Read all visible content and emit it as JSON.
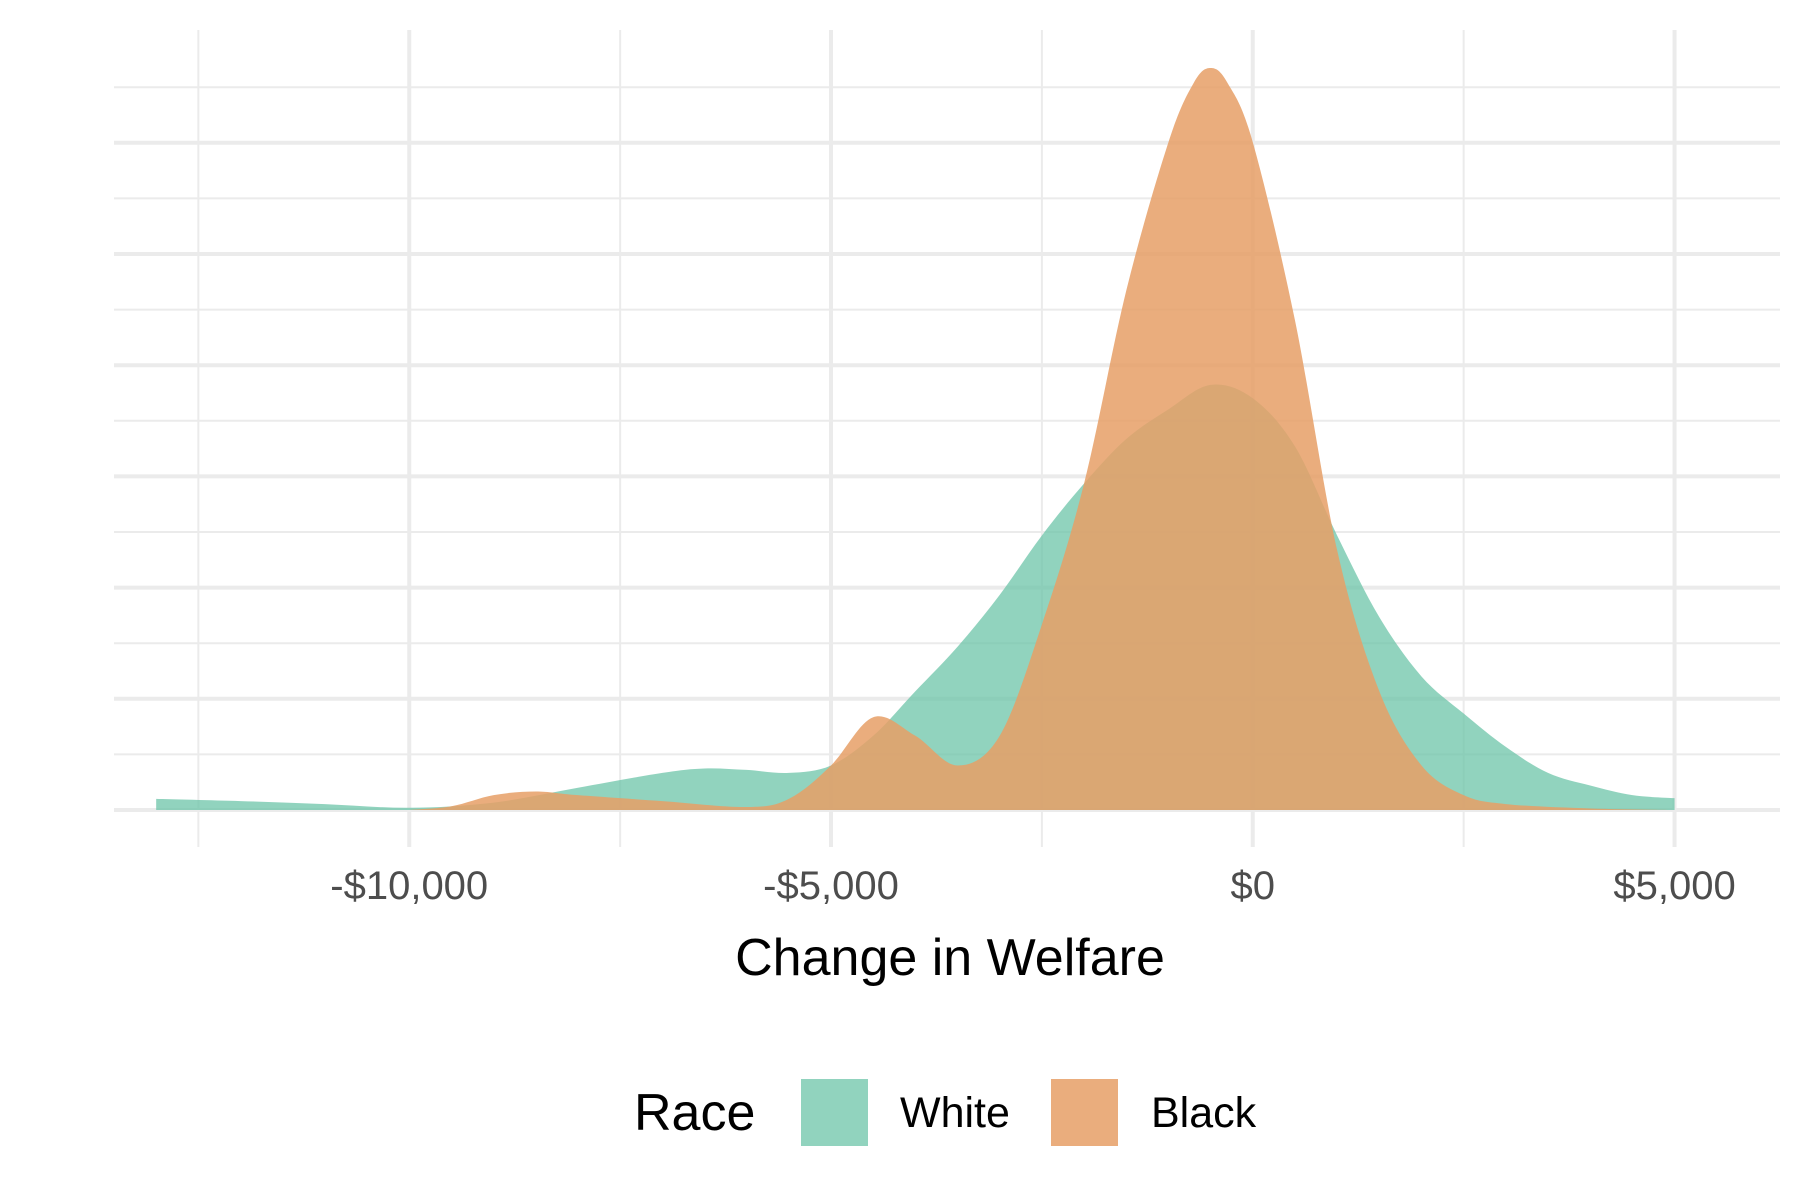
{
  "chart_data": {
    "type": "area",
    "subtype": "density",
    "title": "",
    "xlabel": "Change in Welfare",
    "ylabel": "",
    "xlim": [
      -13500,
      6250
    ],
    "ylim": [
      0,
      1.0
    ],
    "x_ticks": [
      -10000,
      -5000,
      0,
      5000
    ],
    "x_tick_labels": [
      "-$10,000",
      "-$5,000",
      "$0",
      "$5,000"
    ],
    "y_ticks_shown": false,
    "grid": true,
    "legend": {
      "title": "Race",
      "position": "bottom"
    },
    "series": [
      {
        "name": "White",
        "color": "#66C2A5",
        "opacity": 0.72,
        "points": [
          [
            -13000,
            0.015
          ],
          [
            -12000,
            0.012
          ],
          [
            -11000,
            0.008
          ],
          [
            -10000,
            0.003
          ],
          [
            -9000,
            0.01
          ],
          [
            -8000,
            0.03
          ],
          [
            -7000,
            0.05
          ],
          [
            -6500,
            0.056
          ],
          [
            -6000,
            0.054
          ],
          [
            -5500,
            0.05
          ],
          [
            -5000,
            0.06
          ],
          [
            -4500,
            0.1
          ],
          [
            -4000,
            0.16
          ],
          [
            -3500,
            0.22
          ],
          [
            -3000,
            0.29
          ],
          [
            -2500,
            0.37
          ],
          [
            -2000,
            0.44
          ],
          [
            -1500,
            0.5
          ],
          [
            -1000,
            0.54
          ],
          [
            -500,
            0.573
          ],
          [
            0,
            0.555
          ],
          [
            500,
            0.49
          ],
          [
            1000,
            0.37
          ],
          [
            1500,
            0.26
          ],
          [
            2000,
            0.18
          ],
          [
            2500,
            0.13
          ],
          [
            3000,
            0.085
          ],
          [
            3500,
            0.05
          ],
          [
            4000,
            0.033
          ],
          [
            4500,
            0.02
          ],
          [
            5000,
            0.016
          ]
        ]
      },
      {
        "name": "Black",
        "color": "#E69F66",
        "opacity": 0.85,
        "points": [
          [
            -10000,
            0.0
          ],
          [
            -9500,
            0.005
          ],
          [
            -9000,
            0.02
          ],
          [
            -8500,
            0.025
          ],
          [
            -8000,
            0.02
          ],
          [
            -7000,
            0.012
          ],
          [
            -6000,
            0.004
          ],
          [
            -5500,
            0.015
          ],
          [
            -5000,
            0.06
          ],
          [
            -4500,
            0.125
          ],
          [
            -4000,
            0.1
          ],
          [
            -3500,
            0.06
          ],
          [
            -3000,
            0.1
          ],
          [
            -2500,
            0.25
          ],
          [
            -2000,
            0.44
          ],
          [
            -1500,
            0.7
          ],
          [
            -1000,
            0.9
          ],
          [
            -700,
            0.98
          ],
          [
            -500,
            1.0
          ],
          [
            -300,
            0.98
          ],
          [
            0,
            0.9
          ],
          [
            500,
            0.66
          ],
          [
            1000,
            0.35
          ],
          [
            1500,
            0.16
          ],
          [
            2000,
            0.06
          ],
          [
            2500,
            0.02
          ],
          [
            3000,
            0.008
          ],
          [
            4000,
            0.002
          ],
          [
            5000,
            0.0
          ]
        ]
      }
    ]
  }
}
